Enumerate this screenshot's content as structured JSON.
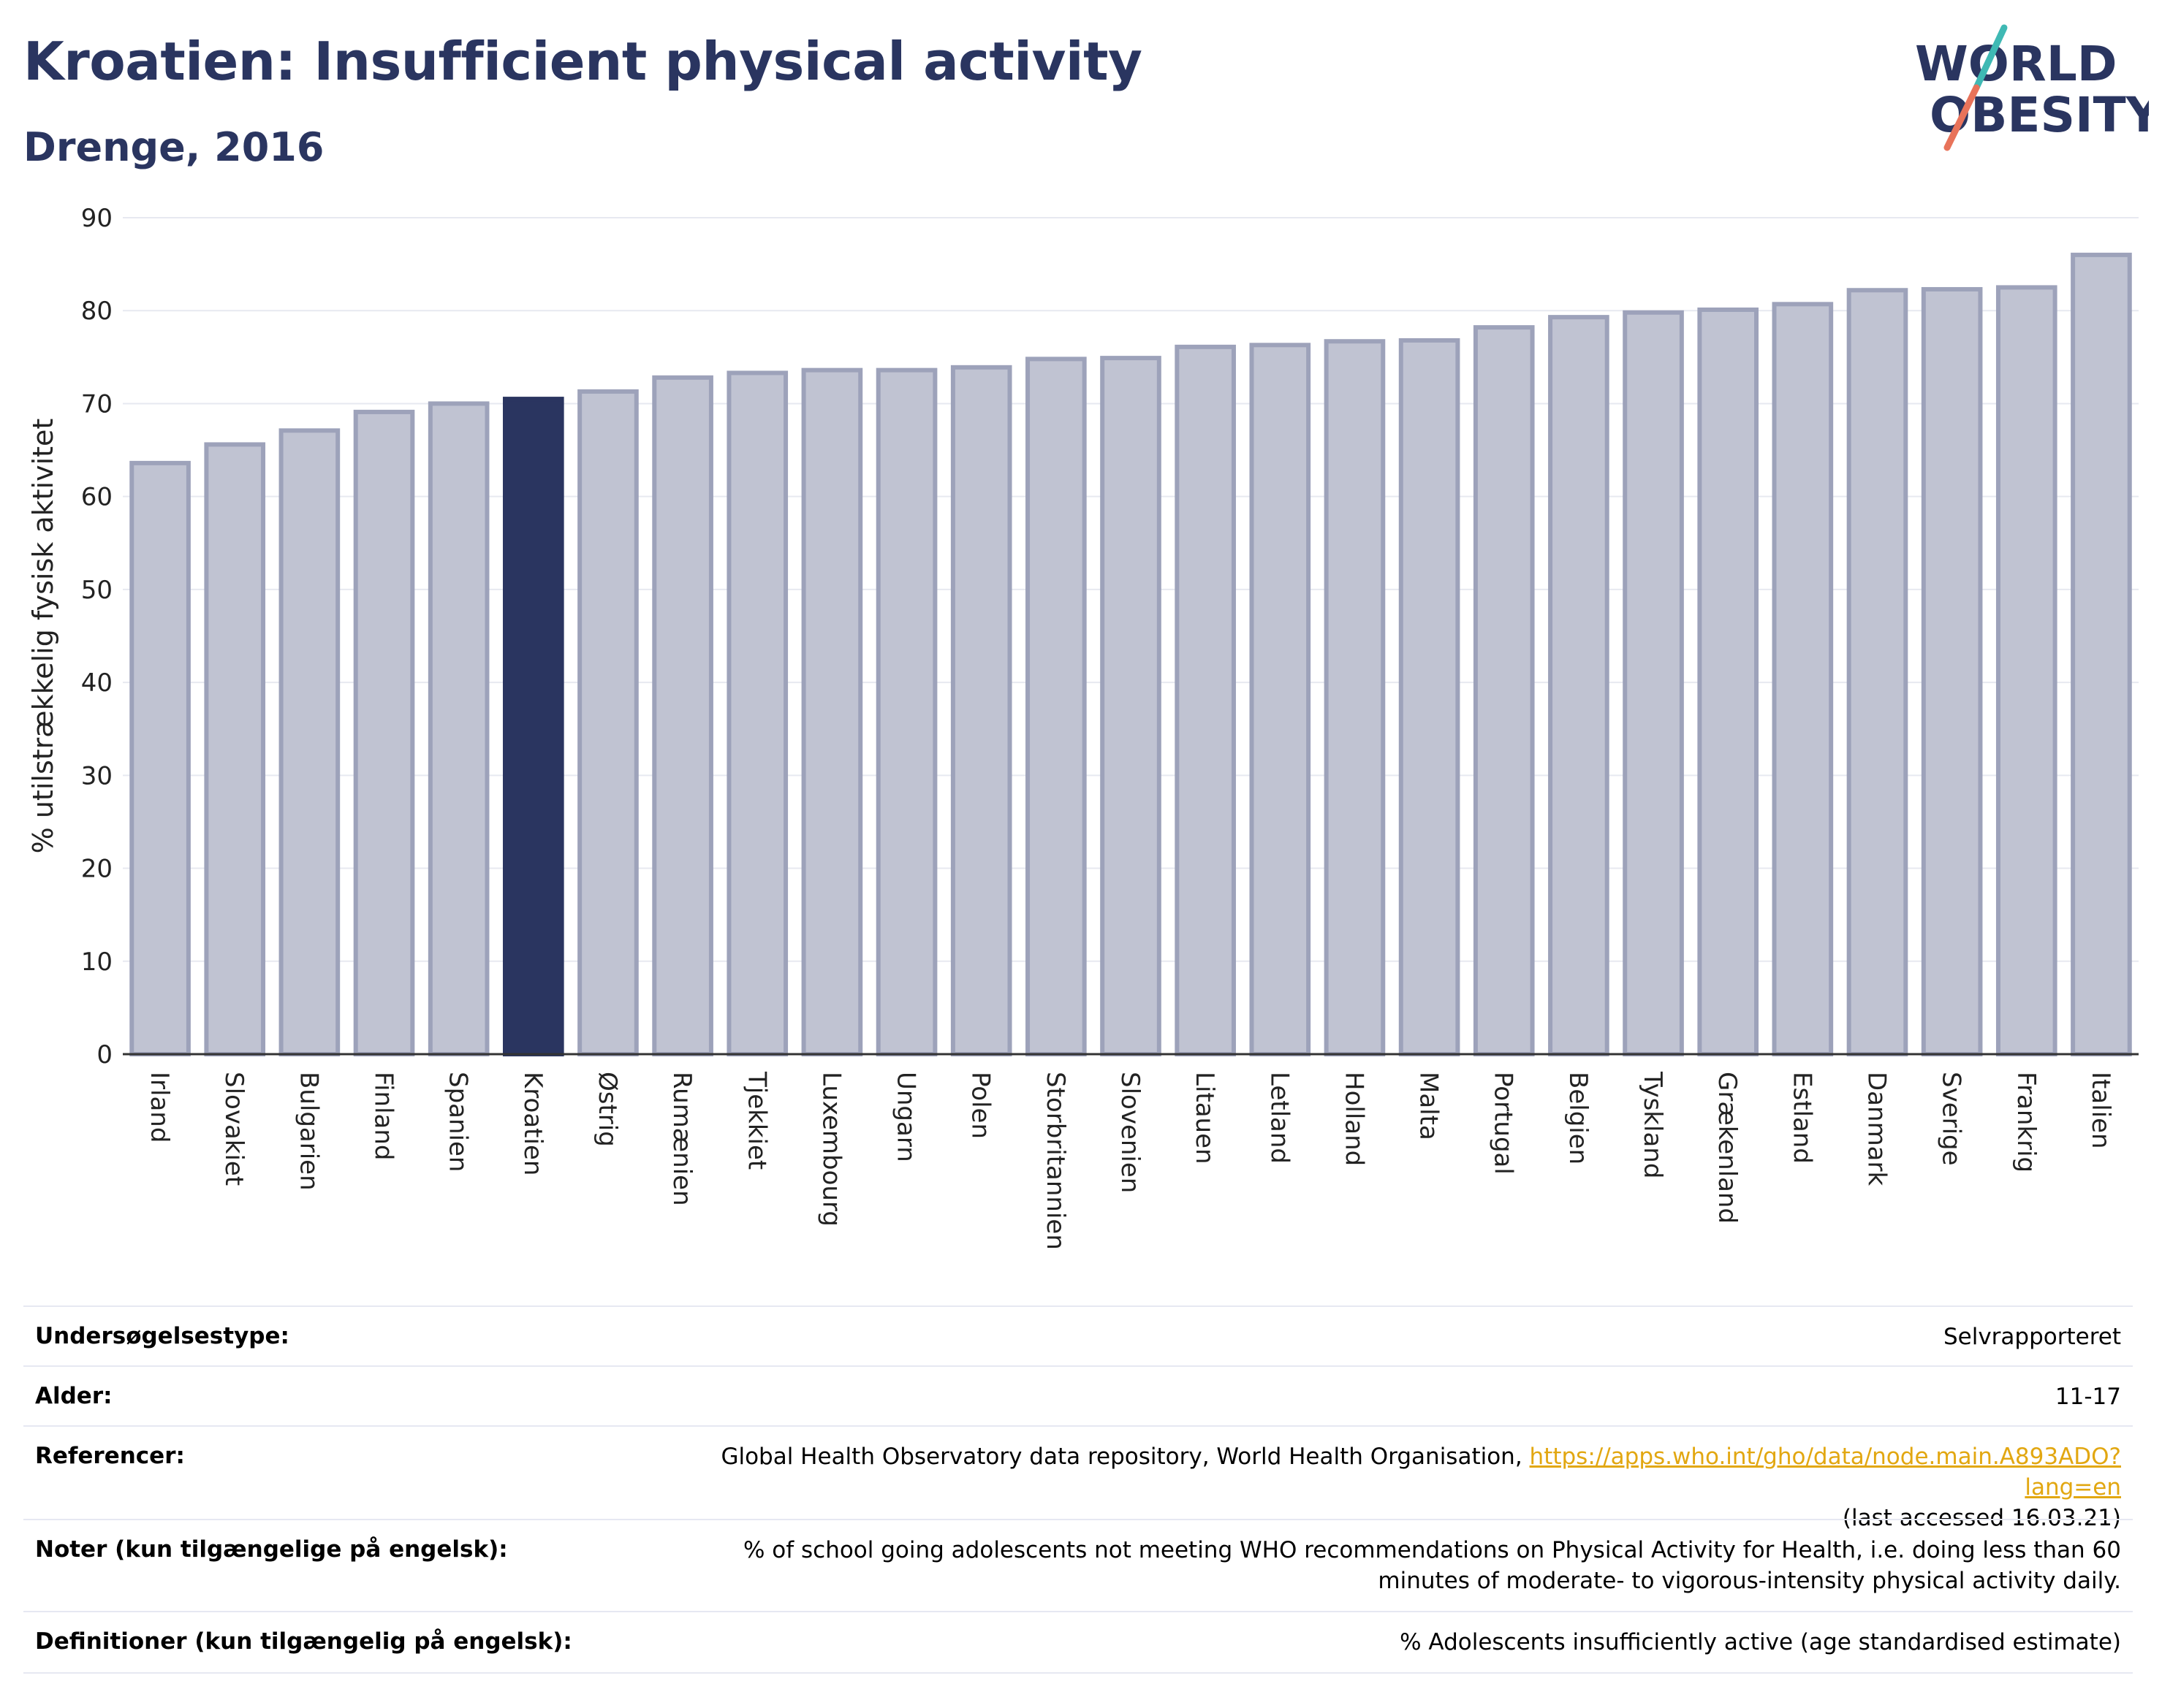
{
  "header": {
    "title": "Kroatien: Insufficient physical activity",
    "subtitle": "Drenge, 2016"
  },
  "logo": {
    "line1": "WORLD",
    "line2": "OBESITY",
    "text_color": "#2a3560",
    "slash_colors": [
      "#3fb9b4",
      "#e8735a"
    ]
  },
  "colors": {
    "bar_default": "#c0c3d2",
    "bar_default_stroke": "#9da2ba",
    "bar_highlight": "#2a3560",
    "grid": "#e7e9f0",
    "axis": "#333333"
  },
  "chart_data": {
    "type": "bar",
    "ylabel": "% utilstrækkelig fysisk aktivitet",
    "ylim": [
      0,
      90
    ],
    "yticks": [
      0,
      10,
      20,
      30,
      40,
      50,
      60,
      70,
      80,
      90
    ],
    "grid": true,
    "highlight": "Kroatien",
    "categories": [
      "Irland",
      "Slovakiet",
      "Bulgarien",
      "Finland",
      "Spanien",
      "Kroatien",
      "Østrig",
      "Rumænien",
      "Tjekkiet",
      "Luxembourg",
      "Ungarn",
      "Polen",
      "Storbritannien",
      "Slovenien",
      "Litauen",
      "Letland",
      "Holland",
      "Malta",
      "Portugal",
      "Belgien",
      "Tyskland",
      "Grækenland",
      "Estland",
      "Danmark",
      "Sverige",
      "Frankrig",
      "Italien"
    ],
    "values": [
      63.6,
      65.6,
      67.1,
      69.1,
      70.0,
      70.5,
      71.3,
      72.8,
      73.3,
      73.6,
      73.6,
      73.9,
      74.8,
      74.9,
      76.1,
      76.3,
      76.7,
      76.8,
      78.2,
      79.3,
      79.8,
      80.1,
      80.7,
      82.2,
      82.3,
      82.5,
      86.0
    ]
  },
  "meta": {
    "rows": [
      {
        "label": "Undersøgelsestype:",
        "value": "Selvrapporteret"
      },
      {
        "label": "Alder:",
        "value": "11-17"
      },
      {
        "label": "Referencer:",
        "value_pre": "Global Health Observatory data repository, World Health Organisation, ",
        "link": "https://apps.who.int/gho/data/node.main.A893ADO?lang=en",
        "value_post": "(last accessed 16.03.21)"
      },
      {
        "label": "Noter (kun tilgængelige på engelsk):",
        "value": "% of school going adolescents not meeting WHO recommendations on Physical Activity for Health, i.e. doing less than 60 minutes of moderate- to vigorous-intensity physical activity daily."
      },
      {
        "label": "Definitioner (kun tilgængelig på engelsk):",
        "value": "% Adolescents insufficiently active (age standardised estimate)"
      }
    ]
  }
}
